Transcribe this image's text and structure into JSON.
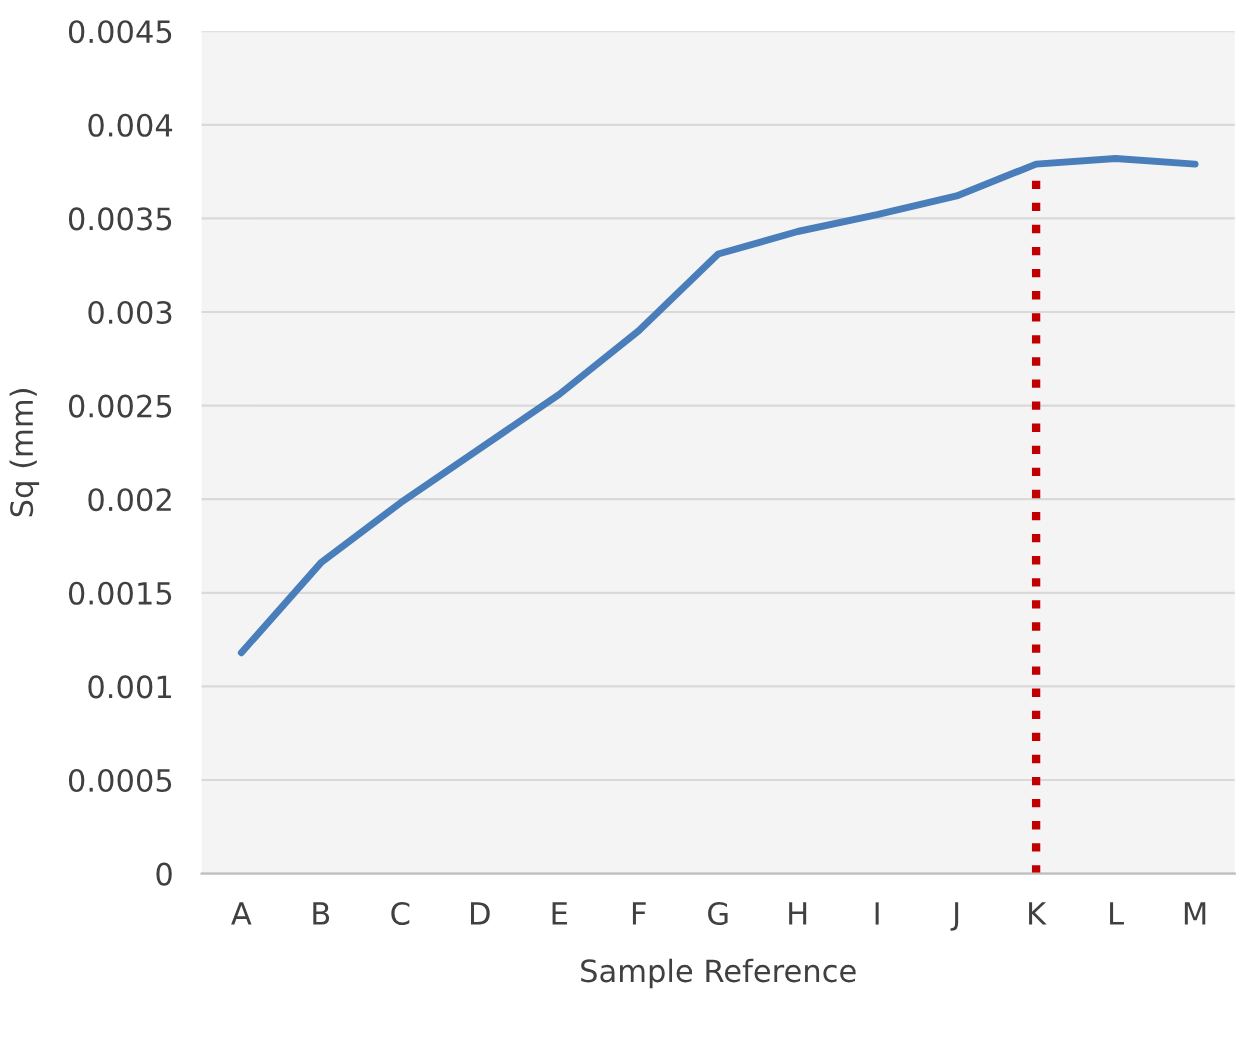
{
  "chart_data": {
    "type": "line",
    "xlabel": "Sample Reference",
    "ylabel": "Sq (mm)",
    "categories": [
      "A",
      "B",
      "C",
      "D",
      "E",
      "F",
      "G",
      "H",
      "I",
      "J",
      "K",
      "L",
      "M"
    ],
    "series": [
      {
        "color": "#4a7ebb",
        "values": [
          0.00118,
          0.00166,
          0.00198,
          0.00227,
          0.00256,
          0.0029,
          0.00331,
          0.00343,
          0.00352,
          0.00362,
          0.00379,
          0.00382,
          0.00379
        ]
      }
    ],
    "ylim": [
      0,
      0.0045
    ],
    "yticks": [
      0,
      0.0005,
      0.001,
      0.0015,
      0.002,
      0.0025,
      0.003,
      0.0035,
      0.004,
      0.0045
    ],
    "grid": "y",
    "line_style": "solid",
    "marker": "none",
    "ref_lines": [
      {
        "axis": "x",
        "value": "K",
        "color": "#c00000",
        "line_style": "dotted"
      }
    ]
  }
}
